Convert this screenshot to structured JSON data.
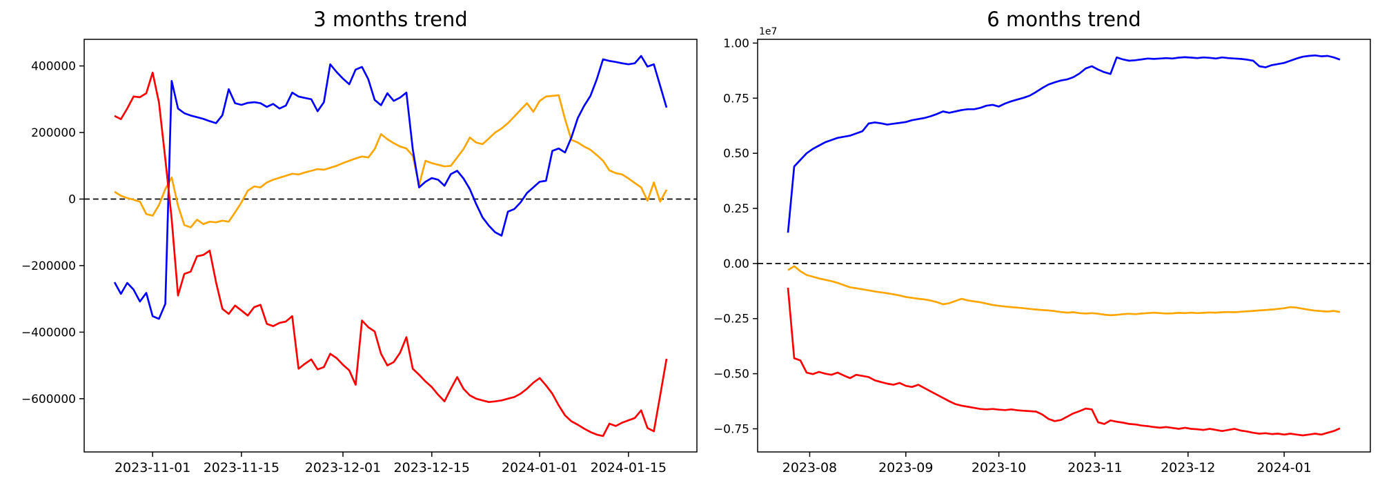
{
  "figure": {
    "background": "#ffffff",
    "axis_color": "#000000"
  },
  "chart_data": [
    {
      "type": "line",
      "title": "3 months trend",
      "xlabel": "",
      "ylabel": "",
      "ylim": [
        -760000,
        480000
      ],
      "day_max": 87,
      "grid": false,
      "legend": "none",
      "zero_line": {
        "value": 0,
        "style": "dashed",
        "color": "#000000"
      },
      "yticks": [
        {
          "value": 400000,
          "label": "400000"
        },
        {
          "value": 200000,
          "label": "200000"
        },
        {
          "value": 0,
          "label": "0"
        },
        {
          "value": -200000,
          "label": "−200000"
        },
        {
          "value": -400000,
          "label": "−400000"
        },
        {
          "value": -600000,
          "label": "−600000"
        }
      ],
      "xticks": [
        {
          "day": 6,
          "label": "2023-11-01"
        },
        {
          "day": 20,
          "label": "2023-11-15"
        },
        {
          "day": 36,
          "label": "2023-12-01"
        },
        {
          "day": 50,
          "label": "2023-12-15"
        },
        {
          "day": 67,
          "label": "2024-01-01"
        },
        {
          "day": 81,
          "label": "2024-01-15"
        }
      ],
      "series": [
        {
          "name": "orange-series",
          "color": "#ffa500",
          "values": [
            22000,
            10000,
            3000,
            -2000,
            -8000,
            -45000,
            -50000,
            -18000,
            30000,
            65000,
            -20000,
            -78000,
            -85000,
            -62000,
            -75000,
            -68000,
            -70000,
            -65000,
            -68000,
            -40000,
            -10000,
            25000,
            38000,
            35000,
            50000,
            58000,
            64000,
            70000,
            76000,
            74000,
            80000,
            85000,
            90000,
            88000,
            94000,
            100000,
            108000,
            115000,
            122000,
            128000,
            125000,
            150000,
            195000,
            180000,
            168000,
            158000,
            152000,
            130000,
            42000,
            115000,
            108000,
            103000,
            98000,
            100000,
            125000,
            150000,
            185000,
            170000,
            165000,
            182000,
            200000,
            212000,
            228000,
            248000,
            268000,
            288000,
            262000,
            295000,
            308000,
            310000,
            312000,
            240000,
            178000,
            170000,
            158000,
            148000,
            132000,
            115000,
            86000,
            78000,
            74000,
            62000,
            48000,
            35000,
            -5000,
            50000,
            -8000,
            28000
          ]
        },
        {
          "name": "blue-series",
          "color": "#0000ff",
          "values": [
            -250000,
            -285000,
            -252000,
            -272000,
            -308000,
            -282000,
            -352000,
            -360000,
            -315000,
            355000,
            272000,
            258000,
            251000,
            246000,
            241000,
            234000,
            228000,
            252000,
            330000,
            288000,
            283000,
            289000,
            291000,
            288000,
            277000,
            286000,
            272000,
            281000,
            320000,
            308000,
            304000,
            300000,
            264000,
            291000,
            405000,
            382000,
            362000,
            345000,
            389000,
            397000,
            360000,
            298000,
            282000,
            318000,
            295000,
            305000,
            320000,
            150000,
            35000,
            52000,
            63000,
            58000,
            40000,
            75000,
            85000,
            62000,
            30000,
            -15000,
            -55000,
            -80000,
            -100000,
            -110000,
            -38000,
            -30000,
            -10000,
            18000,
            35000,
            52000,
            55000,
            145000,
            152000,
            140000,
            185000,
            243000,
            280000,
            310000,
            360000,
            420000,
            415000,
            412000,
            408000,
            405000,
            408000,
            430000,
            398000,
            405000,
            340000,
            275000
          ]
        },
        {
          "name": "red-series",
          "color": "#ff0000",
          "values": [
            250000,
            240000,
            272000,
            308000,
            306000,
            318000,
            380000,
            290000,
            120000,
            -60000,
            -290000,
            -225000,
            -218000,
            -172000,
            -168000,
            -155000,
            -250000,
            -330000,
            -345000,
            -320000,
            -335000,
            -350000,
            -325000,
            -318000,
            -375000,
            -382000,
            -372000,
            -368000,
            -352000,
            -510000,
            -495000,
            -482000,
            -512000,
            -505000,
            -465000,
            -478000,
            -498000,
            -515000,
            -558000,
            -365000,
            -385000,
            -398000,
            -465000,
            -500000,
            -490000,
            -462000,
            -415000,
            -510000,
            -528000,
            -548000,
            -565000,
            -588000,
            -608000,
            -570000,
            -535000,
            -570000,
            -590000,
            -600000,
            -605000,
            -610000,
            -608000,
            -605000,
            -600000,
            -595000,
            -585000,
            -570000,
            -552000,
            -538000,
            -560000,
            -585000,
            -620000,
            -650000,
            -668000,
            -678000,
            -690000,
            -700000,
            -708000,
            -712000,
            -675000,
            -682000,
            -672000,
            -665000,
            -658000,
            -635000,
            -688000,
            -698000,
            -590000,
            -480000
          ]
        }
      ]
    },
    {
      "type": "line",
      "title": "6 months trend",
      "xlabel": "",
      "ylabel": "",
      "offset_label": "1e7",
      "ylim": [
        -8550000,
        10170000
      ],
      "day_max": 178,
      "grid": false,
      "legend": "none",
      "zero_line": {
        "value": 0,
        "style": "dashed",
        "color": "#000000"
      },
      "yticks": [
        {
          "value": 10000000,
          "label": "1.00"
        },
        {
          "value": 7500000,
          "label": "0.75"
        },
        {
          "value": 5000000,
          "label": "0.50"
        },
        {
          "value": 2500000,
          "label": "0.25"
        },
        {
          "value": 0,
          "label": "0.00"
        },
        {
          "value": -2500000,
          "label": "−0.25"
        },
        {
          "value": -5000000,
          "label": "−0.50"
        },
        {
          "value": -7500000,
          "label": "−0.75"
        }
      ],
      "xticks": [
        {
          "day": 7,
          "label": "2023-08"
        },
        {
          "day": 38,
          "label": "2023-09"
        },
        {
          "day": 68,
          "label": "2023-10"
        },
        {
          "day": 99,
          "label": "2023-11"
        },
        {
          "day": 129,
          "label": "2023-12"
        },
        {
          "day": 160,
          "label": "2024-01"
        }
      ],
      "series": [
        {
          "name": "orange-series",
          "color": "#ffa500",
          "values": [
            -300000,
            -120000,
            -350000,
            -520000,
            -600000,
            -680000,
            -740000,
            -800000,
            -880000,
            -980000,
            -1080000,
            -1120000,
            -1170000,
            -1220000,
            -1270000,
            -1310000,
            -1350000,
            -1400000,
            -1450000,
            -1520000,
            -1560000,
            -1600000,
            -1630000,
            -1680000,
            -1750000,
            -1850000,
            -1800000,
            -1700000,
            -1600000,
            -1680000,
            -1720000,
            -1760000,
            -1820000,
            -1880000,
            -1920000,
            -1950000,
            -1980000,
            -2000000,
            -2030000,
            -2060000,
            -2090000,
            -2110000,
            -2130000,
            -2160000,
            -2200000,
            -2230000,
            -2210000,
            -2250000,
            -2270000,
            -2250000,
            -2280000,
            -2320000,
            -2350000,
            -2330000,
            -2300000,
            -2280000,
            -2300000,
            -2270000,
            -2250000,
            -2230000,
            -2250000,
            -2270000,
            -2260000,
            -2240000,
            -2250000,
            -2230000,
            -2250000,
            -2240000,
            -2220000,
            -2230000,
            -2210000,
            -2200000,
            -2210000,
            -2190000,
            -2170000,
            -2150000,
            -2130000,
            -2110000,
            -2090000,
            -2060000,
            -2030000,
            -1980000,
            -2000000,
            -2050000,
            -2100000,
            -2140000,
            -2160000,
            -2180000,
            -2150000,
            -2200000
          ]
        },
        {
          "name": "blue-series",
          "color": "#0000ff",
          "values": [
            1400000,
            4400000,
            4700000,
            5000000,
            5200000,
            5350000,
            5500000,
            5600000,
            5700000,
            5750000,
            5800000,
            5900000,
            6000000,
            6350000,
            6400000,
            6360000,
            6300000,
            6340000,
            6380000,
            6420000,
            6500000,
            6550000,
            6600000,
            6680000,
            6780000,
            6900000,
            6840000,
            6900000,
            6960000,
            7000000,
            7000000,
            7060000,
            7160000,
            7200000,
            7120000,
            7260000,
            7360000,
            7440000,
            7520000,
            7620000,
            7780000,
            7960000,
            8120000,
            8220000,
            8300000,
            8350000,
            8450000,
            8620000,
            8850000,
            8950000,
            8800000,
            8680000,
            8600000,
            9350000,
            9260000,
            9200000,
            9220000,
            9260000,
            9300000,
            9280000,
            9300000,
            9320000,
            9300000,
            9340000,
            9360000,
            9340000,
            9320000,
            9350000,
            9330000,
            9300000,
            9350000,
            9320000,
            9300000,
            9280000,
            9250000,
            9200000,
            8950000,
            8900000,
            9000000,
            9050000,
            9100000,
            9200000,
            9300000,
            9380000,
            9420000,
            9440000,
            9400000,
            9420000,
            9350000,
            9250000
          ]
        },
        {
          "name": "red-series",
          "color": "#ff0000",
          "values": [
            -1100000,
            -4300000,
            -4400000,
            -4950000,
            -5020000,
            -4920000,
            -5000000,
            -5050000,
            -4950000,
            -5080000,
            -5200000,
            -5050000,
            -5100000,
            -5150000,
            -5300000,
            -5380000,
            -5450000,
            -5500000,
            -5420000,
            -5550000,
            -5600000,
            -5500000,
            -5650000,
            -5800000,
            -5950000,
            -6100000,
            -6250000,
            -6380000,
            -6450000,
            -6500000,
            -6550000,
            -6600000,
            -6620000,
            -6600000,
            -6630000,
            -6650000,
            -6620000,
            -6660000,
            -6680000,
            -6700000,
            -6720000,
            -6850000,
            -7050000,
            -7150000,
            -7100000,
            -6950000,
            -6800000,
            -6700000,
            -6580000,
            -6620000,
            -7200000,
            -7280000,
            -7120000,
            -7180000,
            -7220000,
            -7280000,
            -7300000,
            -7350000,
            -7380000,
            -7420000,
            -7450000,
            -7420000,
            -7460000,
            -7500000,
            -7450000,
            -7500000,
            -7520000,
            -7550000,
            -7500000,
            -7550000,
            -7600000,
            -7550000,
            -7500000,
            -7580000,
            -7620000,
            -7680000,
            -7720000,
            -7700000,
            -7740000,
            -7720000,
            -7760000,
            -7720000,
            -7760000,
            -7800000,
            -7760000,
            -7720000,
            -7760000,
            -7680000,
            -7600000,
            -7480000
          ]
        }
      ]
    }
  ]
}
